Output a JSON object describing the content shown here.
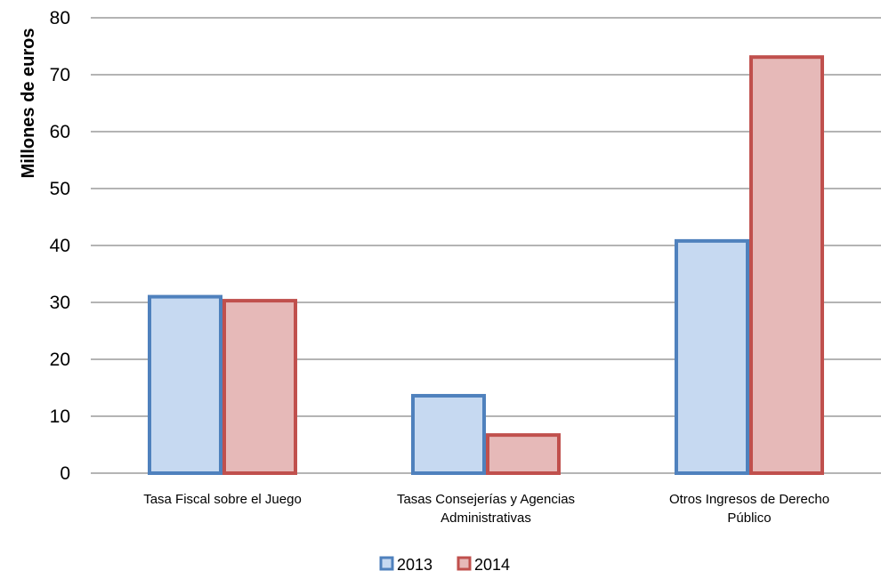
{
  "chart_data": {
    "type": "bar",
    "categories": [
      [
        "Tasa Fiscal sobre el Juego"
      ],
      [
        "Tasas Consejerías y Agencias",
        "Administrativas"
      ],
      [
        "Otros Ingresos de Derecho",
        "Público"
      ]
    ],
    "series": [
      {
        "name": "2013",
        "values": [
          31,
          13.6,
          40.8
        ],
        "stroke": "#4F81BD",
        "fill": "#C6D9F1"
      },
      {
        "name": "2014",
        "values": [
          30.3,
          6.7,
          73.1
        ],
        "stroke": "#C0504D",
        "fill": "#E6B9B8"
      }
    ],
    "title": "",
    "xlabel": "",
    "ylabel": "Millones de euros",
    "ylim": [
      0,
      80
    ],
    "yticks": [
      0,
      10,
      20,
      30,
      40,
      50,
      60,
      70,
      80
    ],
    "grid": true,
    "legend": "bottom",
    "gridline_color": "#868686"
  }
}
